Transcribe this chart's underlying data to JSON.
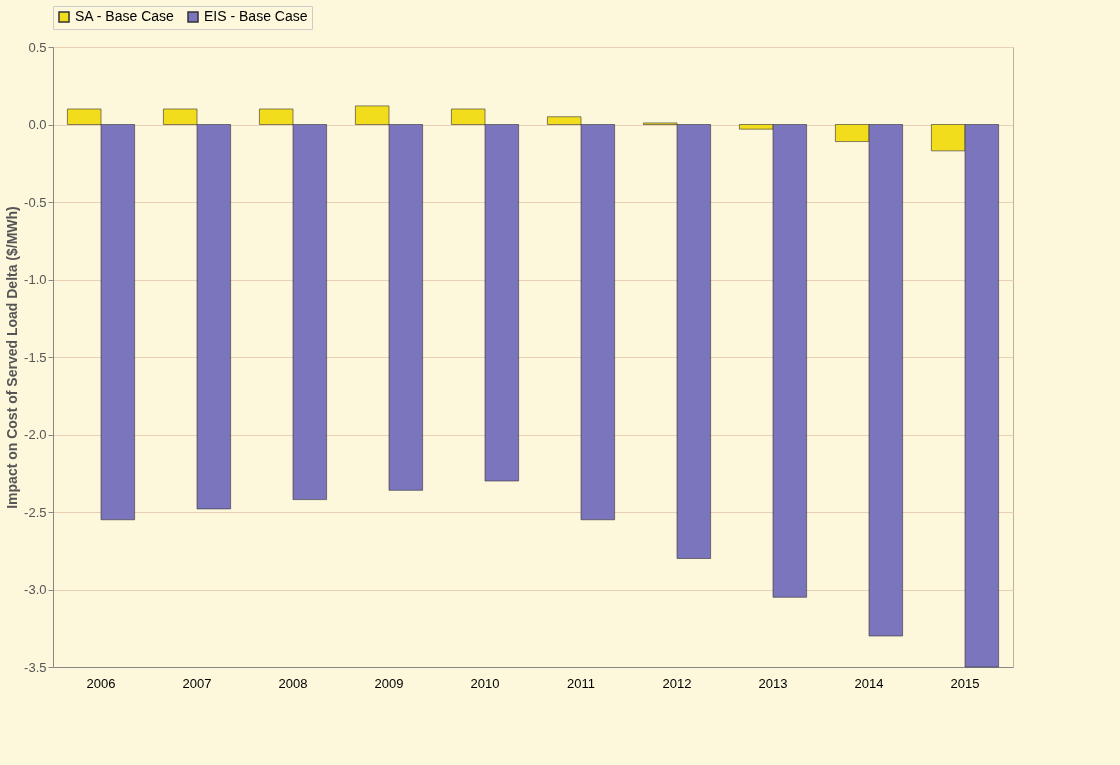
{
  "chart_data": {
    "type": "bar",
    "ylabel": "Impact on Cost of Served Load Delta ($/MWh)",
    "categories": [
      "2006",
      "2007",
      "2008",
      "2009",
      "2010",
      "2011",
      "2012",
      "2013",
      "2014",
      "2015"
    ],
    "series": [
      {
        "name": "SA - Base Case",
        "color": "#f2dd1c",
        "values": [
          0.1,
          0.1,
          0.1,
          0.12,
          0.1,
          0.05,
          0.01,
          -0.03,
          -0.11,
          -0.17
        ]
      },
      {
        "name": "EIS - Base Case",
        "color": "#7b75bd",
        "values": [
          -2.55,
          -2.48,
          -2.42,
          -2.36,
          -2.3,
          -2.55,
          -2.8,
          -3.05,
          -3.3,
          -3.5
        ]
      }
    ],
    "ylim": [
      -3.5,
      0.5
    ],
    "yticks": [
      {
        "value": 0.5,
        "label": "0.5"
      },
      {
        "value": 0,
        "label": "0.0"
      },
      {
        "value": -0.5,
        "label": "-0.5"
      },
      {
        "value": -1,
        "label": "-1.0"
      },
      {
        "value": -1.5,
        "label": "-1.5"
      },
      {
        "value": -2,
        "label": "-2.0"
      },
      {
        "value": -2.5,
        "label": "-2.5"
      },
      {
        "value": -3,
        "label": "-3.0"
      },
      {
        "value": -3.5,
        "label": "-3.5"
      }
    ],
    "grid": "y",
    "legend": "top"
  }
}
